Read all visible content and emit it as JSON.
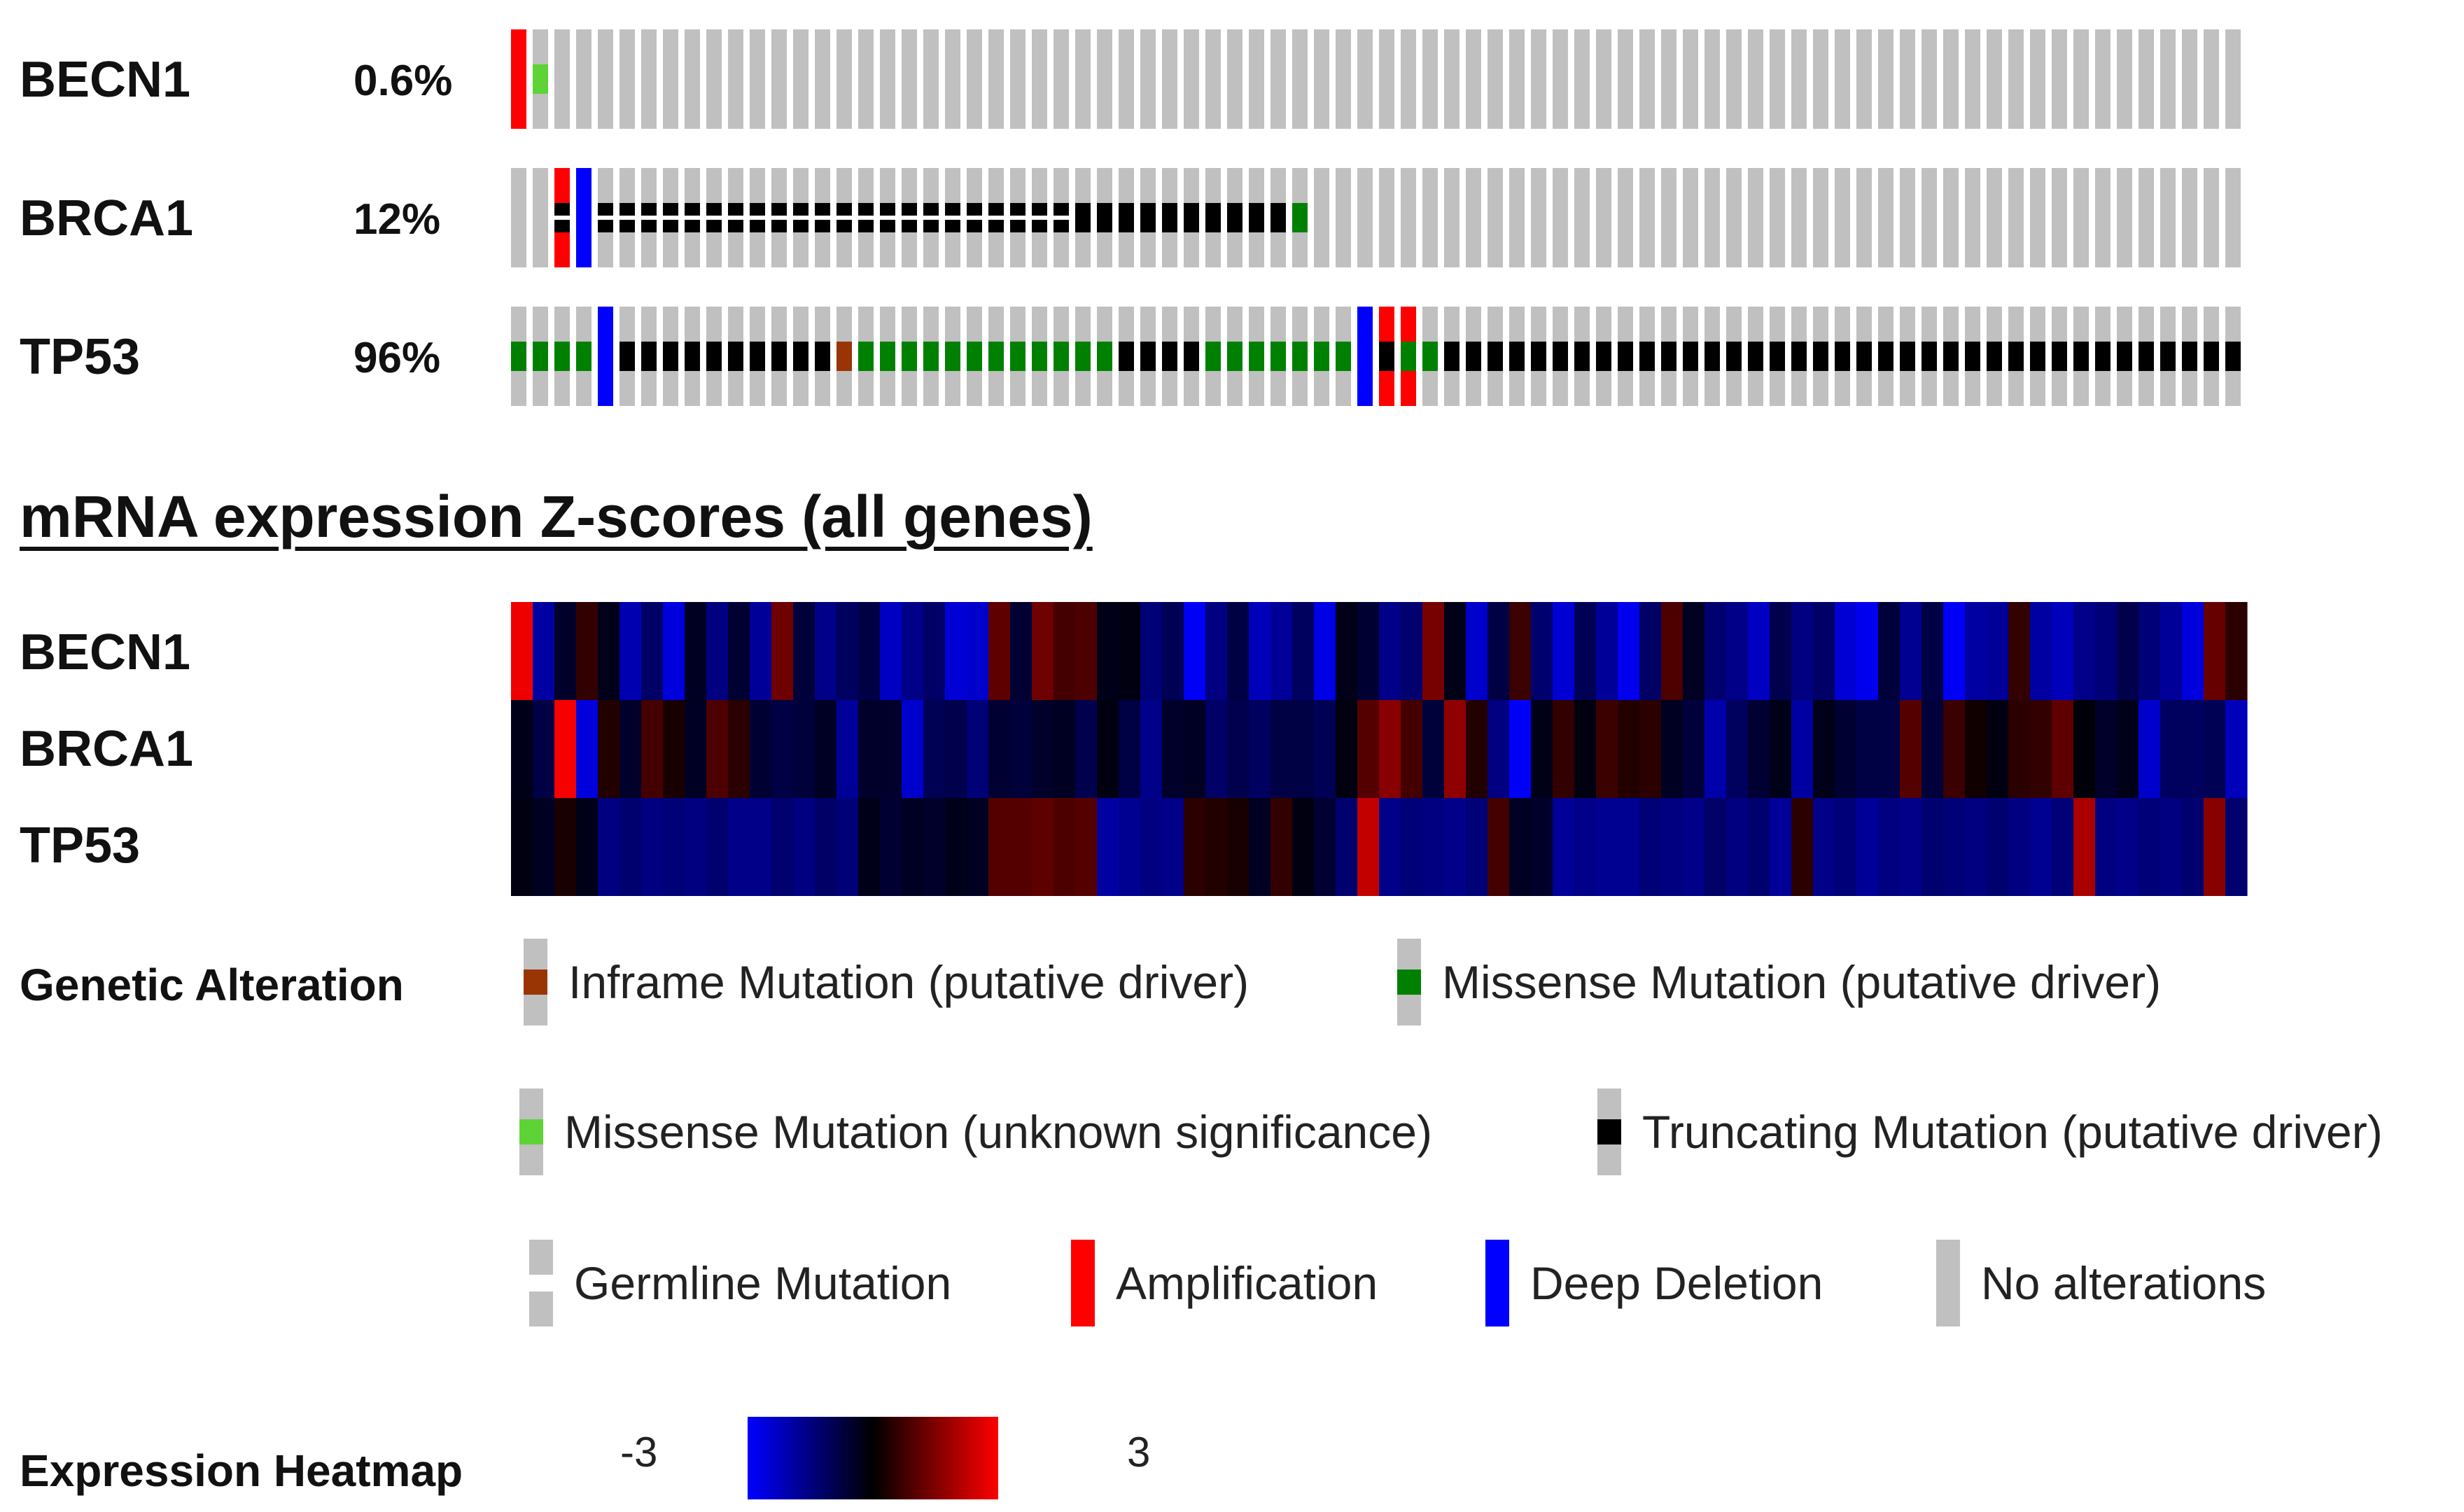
{
  "colors": {
    "no_alteration": "#c0c0c0",
    "amplification": "#ff0000",
    "deep_deletion": "#0000ff",
    "missense_driver": "#008000",
    "missense_unknown": "#5dd336",
    "truncating": "#000000",
    "inframe": "#993404",
    "germline": "#ffffff"
  },
  "chart_data": [
    {
      "type": "heatmap",
      "name": "oncoprint",
      "samples": 80,
      "genes": [
        {
          "name": "BECN1",
          "percent": "0.6%",
          "events": [
            {
              "sample": 0,
              "alt": "amplification"
            },
            {
              "sample": 1,
              "alt": "missense_unknown"
            }
          ]
        },
        {
          "name": "BRCA1",
          "percent": "12%",
          "events": [
            {
              "sample": 2,
              "alt": "amplification"
            },
            {
              "sample": 2,
              "alt": "germline"
            },
            {
              "sample": 2,
              "alt": "truncating"
            },
            {
              "sample": 3,
              "alt": "deep_deletion"
            },
            {
              "sample": 4,
              "alt": "germline_truncating"
            },
            {
              "sample": 5,
              "alt": "germline_truncating"
            },
            {
              "sample": 6,
              "alt": "germline_truncating"
            },
            {
              "sample": 7,
              "alt": "germline_truncating"
            },
            {
              "sample": 8,
              "alt": "germline_truncating"
            },
            {
              "sample": 9,
              "alt": "germline_truncating"
            },
            {
              "sample": 10,
              "alt": "germline_truncating"
            },
            {
              "sample": 11,
              "alt": "germline_truncating"
            },
            {
              "sample": 12,
              "alt": "germline_truncating"
            },
            {
              "sample": 13,
              "alt": "germline_truncating"
            },
            {
              "sample": 14,
              "alt": "germline_truncating"
            },
            {
              "sample": 15,
              "alt": "germline_truncating"
            },
            {
              "sample": 16,
              "alt": "germline_truncating"
            },
            {
              "sample": 17,
              "alt": "germline_truncating"
            },
            {
              "sample": 18,
              "alt": "germline_truncating"
            },
            {
              "sample": 19,
              "alt": "germline_truncating"
            },
            {
              "sample": 20,
              "alt": "germline_truncating"
            },
            {
              "sample": 21,
              "alt": "germline_truncating"
            },
            {
              "sample": 22,
              "alt": "germline_truncating"
            },
            {
              "sample": 23,
              "alt": "germline_truncating"
            },
            {
              "sample": 24,
              "alt": "germline_truncating"
            },
            {
              "sample": 25,
              "alt": "germline_truncating"
            },
            {
              "sample": 26,
              "alt": "truncating"
            },
            {
              "sample": 27,
              "alt": "truncating"
            },
            {
              "sample": 28,
              "alt": "truncating"
            },
            {
              "sample": 29,
              "alt": "truncating"
            },
            {
              "sample": 30,
              "alt": "truncating"
            },
            {
              "sample": 31,
              "alt": "truncating"
            },
            {
              "sample": 32,
              "alt": "truncating"
            },
            {
              "sample": 33,
              "alt": "truncating"
            },
            {
              "sample": 34,
              "alt": "truncating"
            },
            {
              "sample": 35,
              "alt": "truncating"
            },
            {
              "sample": 36,
              "alt": "missense_driver"
            }
          ]
        },
        {
          "name": "TP53",
          "percent": "96%",
          "rowPattern": "GGGGXTTTTTTTTTTIGGGGGGGGGGGGTTTTGGGGGGGXAAGTTTTTTTTTTTTTTTTTTTTTTTTTTTTTTTTTTTTT",
          "patternKey": {
            "G": "missense_driver",
            "T": "truncating",
            "I": "inframe",
            "X": "deep_deletion",
            "A": "amplification"
          },
          "overrides": [
            {
              "sample": 40,
              "alt": "amplification_truncating"
            },
            {
              "sample": 41,
              "alt": "amplification_missense"
            }
          ]
        }
      ]
    },
    {
      "type": "heatmap",
      "name": "mRNA expression Z-scores",
      "title": "mRNA expression Z-scores (all genes)",
      "rows": [
        "BECN1",
        "BRCA1",
        "TP53"
      ],
      "zmin": -3,
      "zmax": 3,
      "values": [
        [
          2.8,
          -1.9,
          -0.5,
          0.6,
          -0.3,
          -2.1,
          -1.2,
          -2.6,
          -0.4,
          -1.5,
          -0.6,
          -1.8,
          1.3,
          -0.7,
          -1.6,
          -1.1,
          -0.8,
          -2.3,
          -1.6,
          -1.2,
          -2.5,
          -2.4,
          1.1,
          -0.6,
          1.3,
          0.8,
          0.9,
          -0.3,
          -0.2,
          -1.4,
          -1.0,
          -2.9,
          -1.5,
          -0.8,
          -2.2,
          -1.8,
          -1.1,
          -2.7,
          -0.3,
          -0.6,
          -1.6,
          -1.3,
          1.4,
          -0.3,
          -2.4,
          -0.8,
          0.7,
          -1.3,
          -2.5,
          -1.0,
          -1.8,
          -2.8,
          -1.2,
          0.9,
          -0.4,
          -1.3,
          -1.6,
          -2.3,
          -0.9,
          -1.5,
          -1.2,
          -2.5,
          -2.8,
          -0.7,
          -1.7,
          -0.8,
          -2.9,
          -1.9,
          -1.8,
          0.6,
          -1.9,
          -2.2,
          -1.6,
          -1.4,
          -0.9,
          -1.4,
          -1.8,
          -2.6,
          1.2,
          0.5
        ],
        [
          -0.3,
          -0.8,
          2.9,
          -2.6,
          0.4,
          -0.5,
          0.8,
          0.3,
          -0.4,
          0.9,
          0.5,
          -0.6,
          -0.8,
          -0.7,
          -0.4,
          -1.8,
          -0.5,
          -0.5,
          -2.4,
          -1.0,
          -0.9,
          -1.4,
          -0.6,
          -0.7,
          -0.5,
          -0.4,
          -0.9,
          -0.2,
          -0.8,
          -1.6,
          -0.5,
          -0.4,
          -1.2,
          -0.9,
          -1.1,
          -0.8,
          -0.8,
          -1.0,
          -0.2,
          1.0,
          1.6,
          0.8,
          -0.7,
          1.7,
          0.4,
          -1.5,
          -2.9,
          -0.3,
          0.6,
          -0.2,
          0.7,
          0.4,
          0.5,
          -0.4,
          -0.7,
          -2.0,
          -1.1,
          -0.6,
          -0.3,
          -1.9,
          -0.3,
          -0.6,
          -0.8,
          -0.8,
          1.0,
          -0.7,
          0.7,
          0.2,
          -0.2,
          0.5,
          0.6,
          1.1,
          -0.1,
          -0.5,
          -0.3,
          -2.4,
          -1.1,
          -1.1,
          -1.0,
          -2.2
        ],
        [
          -0.2,
          -0.4,
          0.3,
          -0.3,
          -1.5,
          -1.3,
          -1.5,
          -1.4,
          -1.5,
          -1.3,
          -1.6,
          -1.6,
          -1.3,
          -1.5,
          -1.2,
          -1.4,
          -0.3,
          -0.6,
          -0.4,
          -0.5,
          -0.3,
          -0.4,
          1.0,
          1.0,
          1.1,
          0.9,
          1.0,
          -1.9,
          -1.7,
          -1.5,
          -1.6,
          0.5,
          0.4,
          0.3,
          -0.4,
          0.6,
          -0.2,
          -0.6,
          -1.3,
          2.3,
          -1.6,
          -1.4,
          -1.5,
          -1.6,
          -1.4,
          0.8,
          -0.4,
          -0.5,
          -1.8,
          -1.6,
          -1.7,
          -1.7,
          -1.4,
          -1.5,
          -1.6,
          -1.2,
          -1.5,
          -1.3,
          -1.8,
          0.5,
          -1.6,
          -1.4,
          -1.8,
          -1.5,
          -1.6,
          -1.3,
          -1.4,
          -1.5,
          -1.3,
          -1.5,
          -1.7,
          -1.4,
          2.0,
          -1.5,
          -1.6,
          -1.4,
          -1.5,
          -1.3,
          1.6,
          -1.3
        ]
      ]
    }
  ],
  "oncoprint": {
    "genes": [
      {
        "label": "BECN1",
        "percent": "0.6%"
      },
      {
        "label": "BRCA1",
        "percent": "12%"
      },
      {
        "label": "TP53",
        "percent": "96%"
      }
    ]
  },
  "expression": {
    "title": "mRNA expression Z-scores (all genes)",
    "rows": [
      "BECN1",
      "BRCA1",
      "TP53"
    ]
  },
  "legend": {
    "genetic_alteration_label": "Genetic Alteration",
    "items": [
      {
        "key": "inframe",
        "text": "Inframe Mutation (putative driver)"
      },
      {
        "key": "missense_driver",
        "text": "Missense Mutation (putative driver)"
      },
      {
        "key": "missense_unknown",
        "text": "Missense Mutation (unknown significance)"
      },
      {
        "key": "truncating",
        "text": "Truncating Mutation (putative driver)"
      },
      {
        "key": "germline",
        "text": "Germline Mutation"
      },
      {
        "key": "amplification",
        "text": "Amplification"
      },
      {
        "key": "deep_deletion",
        "text": "Deep Deletion"
      },
      {
        "key": "none",
        "text": "No alterations"
      }
    ],
    "expression_heatmap_label": "Expression Heatmap",
    "scale_min": "-3",
    "scale_max": "3"
  }
}
